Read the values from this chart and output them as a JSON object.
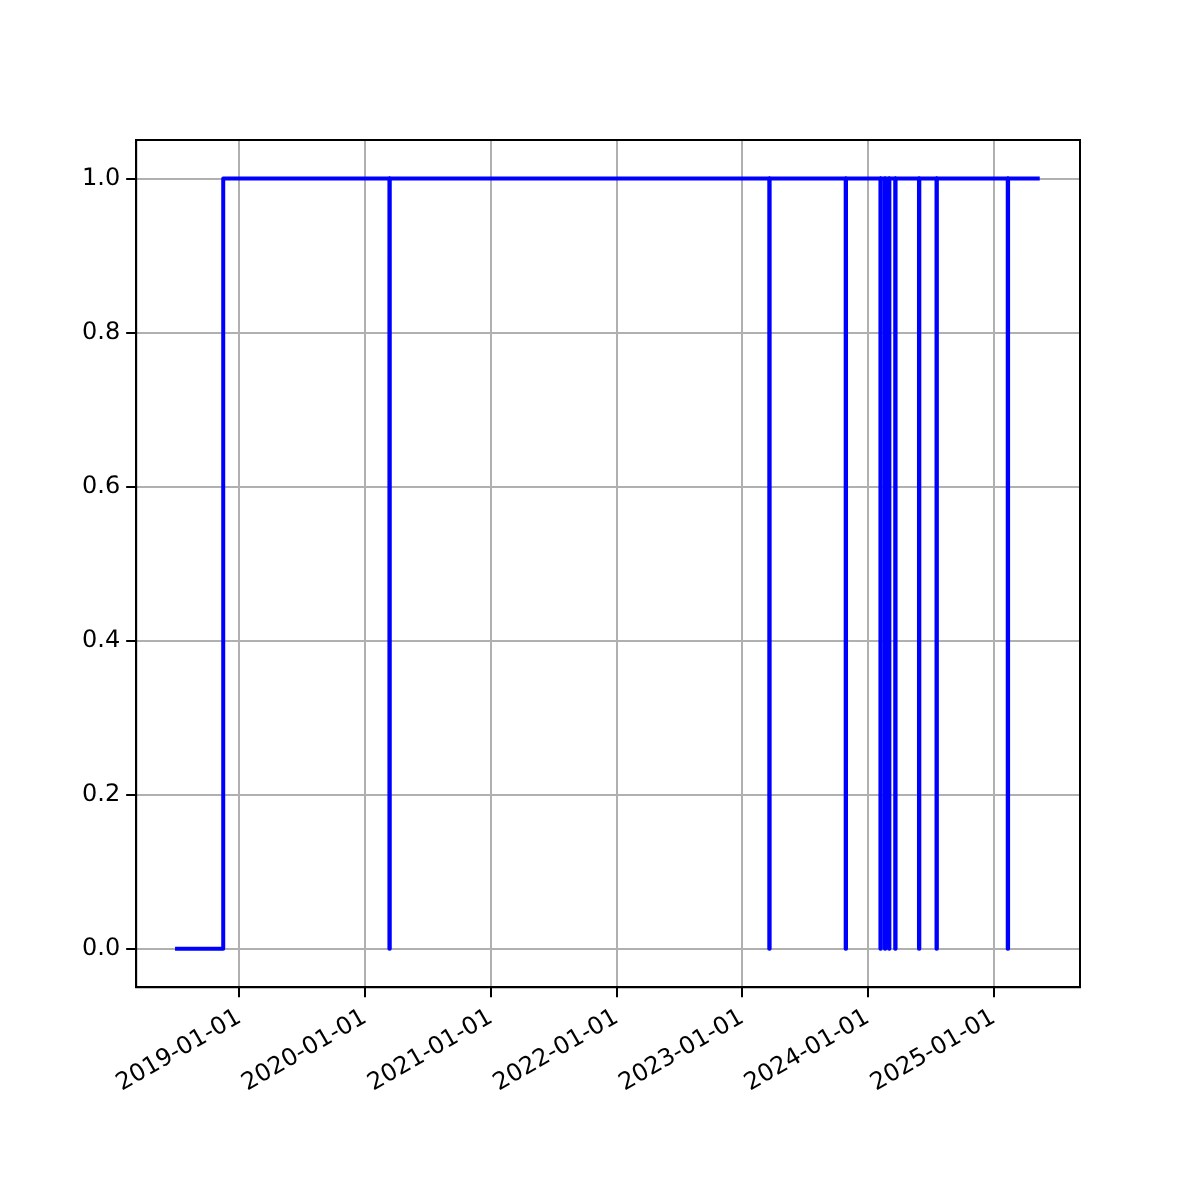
{
  "chart_data": {
    "type": "step",
    "x": [
      "2018-06-28",
      "2018-11-15",
      "2020-03-12",
      "2020-03-13",
      "2023-03-21",
      "2023-03-22",
      "2023-10-29",
      "2023-10-30",
      "2024-02-07",
      "2024-02-08",
      "2024-02-20",
      "2024-02-21",
      "2024-03-03",
      "2024-03-04",
      "2024-03-21",
      "2024-03-22",
      "2024-05-29",
      "2024-05-30",
      "2024-07-19",
      "2024-07-20",
      "2025-02-11",
      "2025-02-12",
      "2025-05-15"
    ],
    "series": [
      {
        "color": "#0000ff",
        "values": [
          0,
          1,
          0,
          1,
          0,
          1,
          0,
          1,
          0,
          1,
          0,
          1,
          0,
          1,
          0,
          1,
          0,
          1,
          0,
          1,
          0,
          1,
          1
        ]
      }
    ],
    "xlim": [
      "2018-03-07",
      "2025-09-09"
    ],
    "xticks": [
      "2019-01-01",
      "2020-01-01",
      "2021-01-01",
      "2022-01-01",
      "2023-01-01",
      "2024-01-01",
      "2025-01-01"
    ],
    "ylim": [
      -0.05,
      1.05
    ],
    "yticks": [
      {
        "value": 0,
        "label": "0.0"
      },
      {
        "value": 0.2,
        "label": "0.2"
      },
      {
        "value": 0.4,
        "label": "0.4"
      },
      {
        "value": 0.6,
        "label": "0.6"
      },
      {
        "value": 0.8,
        "label": "0.8"
      },
      {
        "value": 1,
        "label": "1.0"
      }
    ],
    "grid": true,
    "marker": "none",
    "line_style": "solid"
  }
}
